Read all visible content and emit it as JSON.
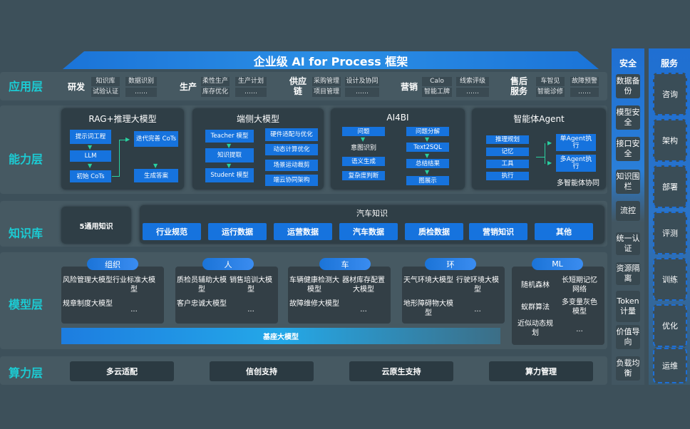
{
  "title": "企业级 AI for Process 框架",
  "layers": {
    "app": "应用层",
    "capability": "能力层",
    "knowledge": "知识库",
    "model": "模型层",
    "compute": "算力层"
  },
  "app": [
    {
      "name": "研发",
      "tags": [
        "知识库",
        "数据识别",
        "试验认证",
        "……"
      ]
    },
    {
      "name": "生产",
      "tags": [
        "柔性生产",
        "生产计划",
        "库存优化",
        "……"
      ]
    },
    {
      "name": "供应链",
      "tags": [
        "采购管理",
        "设计及协同",
        "项目管理",
        "……"
      ]
    },
    {
      "name": "营销",
      "tags": [
        "Calo",
        "线索评级",
        "智能工牌",
        "……"
      ]
    },
    {
      "name": "售后服务",
      "tags": [
        "车智见",
        "故障预警",
        "智能诊修",
        "……"
      ]
    }
  ],
  "capability": {
    "rag": {
      "title": "RAG+推理大模型",
      "items": [
        "提示词工程",
        "LLM",
        "初始 CoTs",
        "迭代完善 CoTs",
        "生成答案"
      ]
    },
    "edge": {
      "title": "端侧大模型",
      "items": [
        "Teacher 模型",
        "知识提取",
        "Student 模型",
        "硬件适配与优化",
        "动态计算优化",
        "场景运动裁剪",
        "端云协同架构"
      ]
    },
    "ai4bi": {
      "title": "AI4BI",
      "items": [
        "问题",
        "意图识别",
        "语义生成",
        "复杂度判断",
        "问题分解",
        "Text2SQL",
        "总结结果",
        "图展示"
      ]
    },
    "agent": {
      "title": "智能体Agent",
      "items": [
        "推理规划",
        "记忆",
        "工具",
        "执行",
        "单Agent执行",
        "多Agent执行"
      ],
      "footer": "多智能体协同"
    }
  },
  "knowledge": {
    "general": "5通用知识",
    "auto_title": "汽车知识",
    "items": [
      "行业规范",
      "运行数据",
      "运营数据",
      "汽车数据",
      "质检数据",
      "营销知识",
      "其他"
    ]
  },
  "model": {
    "groups": [
      {
        "name": "组织",
        "items": [
          "风险管理大模型",
          "行业标准大模型",
          "规章制度大模型",
          "..."
        ]
      },
      {
        "name": "人",
        "items": [
          "质检员辅助大模型",
          "销售培训大模型",
          "客户忠诚大模型",
          "..."
        ]
      },
      {
        "name": "车",
        "items": [
          "车辆健康检测大模型",
          "器材库存配置大模型",
          "故障维修大模型",
          "..."
        ]
      },
      {
        "name": "环",
        "items": [
          "天气环境大模型",
          "行驶环境大模型",
          "地形障碍物大模型",
          "..."
        ]
      },
      {
        "name": "ML",
        "items": [
          "随机森林",
          "长短期记忆网络",
          "蚁群算法",
          "多变量灰色模型",
          "近似动态规划",
          "..."
        ]
      }
    ],
    "base": "基座大模型"
  },
  "compute": [
    "多云适配",
    "信创支持",
    "云原生支持",
    "算力管理"
  ],
  "security": {
    "title": "安全",
    "items": [
      "数据备份",
      "模型安全",
      "接口安全",
      "知识围栏",
      "流控",
      "统一认证",
      "资源隔离",
      "Token计量",
      "价值导向",
      "负载均衡"
    ]
  },
  "services": {
    "title": "服务",
    "items": [
      "咨询",
      "架构",
      "部署",
      "评测",
      "训练",
      "优化",
      "运维"
    ]
  }
}
